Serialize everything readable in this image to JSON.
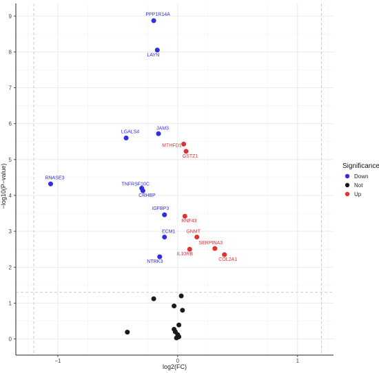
{
  "chart_data": {
    "type": "scatter",
    "title": "",
    "xlabel": "log2(FC)",
    "ylabel": "−log10(P−value)",
    "xlim": [
      -1.35,
      1.3
    ],
    "ylim": [
      -0.45,
      9.35
    ],
    "xticks": [
      {
        "value": -1,
        "label": "−1"
      },
      {
        "value": 0,
        "label": "0"
      },
      {
        "value": 1,
        "label": "1"
      }
    ],
    "yticks": [
      {
        "value": 0,
        "label": "0"
      },
      {
        "value": 1,
        "label": "1"
      },
      {
        "value": 2,
        "label": "2"
      },
      {
        "value": 3,
        "label": "3"
      },
      {
        "value": 4,
        "label": "4"
      },
      {
        "value": 5,
        "label": "5"
      },
      {
        "value": 6,
        "label": "6"
      },
      {
        "value": 7,
        "label": "7"
      },
      {
        "value": 8,
        "label": "8"
      },
      {
        "value": 9,
        "label": "9"
      }
    ],
    "grid": true,
    "thresholds": {
      "x": [
        -1.2,
        1.2
      ],
      "y": 1.3
    },
    "legend": {
      "title": "Significance",
      "position": "right",
      "entries": [
        {
          "label": "Down",
          "color": "#2f2fe0"
        },
        {
          "label": "Not",
          "color": "#1a1a1a"
        },
        {
          "label": "Up",
          "color": "#e03030"
        }
      ]
    },
    "series": [
      {
        "name": "Down",
        "color": "#2f2fe0",
        "points": [
          {
            "label": "PPP1R14A",
            "x": -0.2,
            "y": 8.87
          },
          {
            "label": "LAYN",
            "x": -0.17,
            "y": 8.05
          },
          {
            "label": "JAM3",
            "x": -0.16,
            "y": 5.72
          },
          {
            "label": "LGALS4",
            "x": -0.43,
            "y": 5.6
          },
          {
            "label": "RNASE3",
            "x": -1.06,
            "y": 4.32
          },
          {
            "label": "TNFRSF10C",
            "x": -0.3,
            "y": 4.2
          },
          {
            "label": "CRHBP",
            "x": -0.29,
            "y": 4.13
          },
          {
            "label": "IGFBP3",
            "x": -0.11,
            "y": 3.46
          },
          {
            "label": "ECM1",
            "x": -0.11,
            "y": 2.84
          },
          {
            "label": "NTRK3",
            "x": -0.15,
            "y": 2.29
          }
        ]
      },
      {
        "name": "Not",
        "color": "#1a1a1a",
        "points": [
          {
            "x": 0.03,
            "y": 1.2
          },
          {
            "x": -0.2,
            "y": 1.12
          },
          {
            "x": -0.03,
            "y": 0.92
          },
          {
            "x": 0.04,
            "y": 0.8
          },
          {
            "x": 0.01,
            "y": 0.39
          },
          {
            "x": -0.03,
            "y": 0.27
          },
          {
            "x": -0.42,
            "y": 0.19
          },
          {
            "x": -0.02,
            "y": 0.2
          },
          {
            "x": 0.0,
            "y": 0.12
          },
          {
            "x": 0.0,
            "y": 0.05
          },
          {
            "x": -0.01,
            "y": 0.03
          },
          {
            "x": 0.01,
            "y": 0.06
          }
        ]
      },
      {
        "name": "Up",
        "color": "#e03030",
        "points": [
          {
            "label": "MTHFD1",
            "x": 0.05,
            "y": 5.43
          },
          {
            "label": "GSTZ1",
            "x": 0.07,
            "y": 5.23
          },
          {
            "label": "RNF43",
            "x": 0.06,
            "y": 3.42
          },
          {
            "label": "GNMT",
            "x": 0.16,
            "y": 2.84
          },
          {
            "label": "SERPINA3",
            "x": 0.31,
            "y": 2.52
          },
          {
            "label": "IL10RB",
            "x": 0.1,
            "y": 2.5
          },
          {
            "label": "COL2A1",
            "x": 0.39,
            "y": 2.35
          }
        ]
      }
    ]
  }
}
